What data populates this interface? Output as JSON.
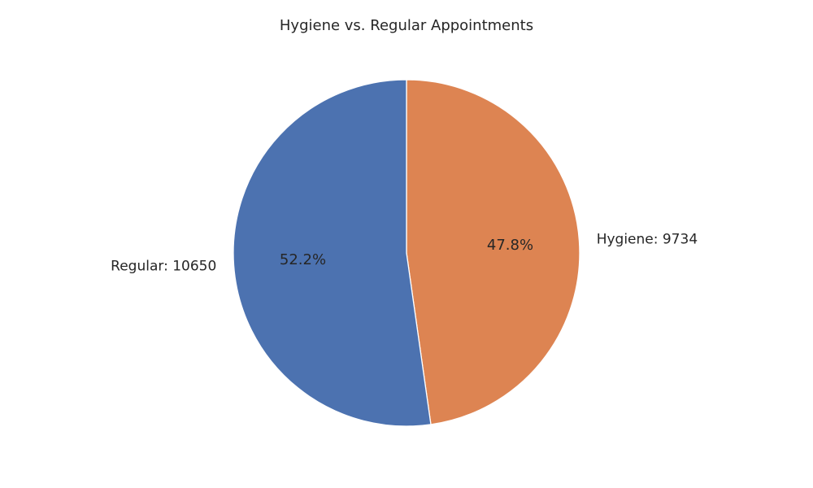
{
  "chart_data": {
    "type": "pie",
    "title": "Hygiene vs. Regular Appointments",
    "slices": [
      {
        "name": "Hygiene",
        "value": 9734,
        "label": "Hygiene: 9734",
        "percent_label": "47.8%",
        "color": "#dd8452"
      },
      {
        "name": "Regular",
        "value": 10650,
        "label": "Regular: 10650",
        "percent_label": "52.2%",
        "color": "#4c72b0"
      }
    ],
    "start": "top",
    "direction": "clockwise"
  }
}
